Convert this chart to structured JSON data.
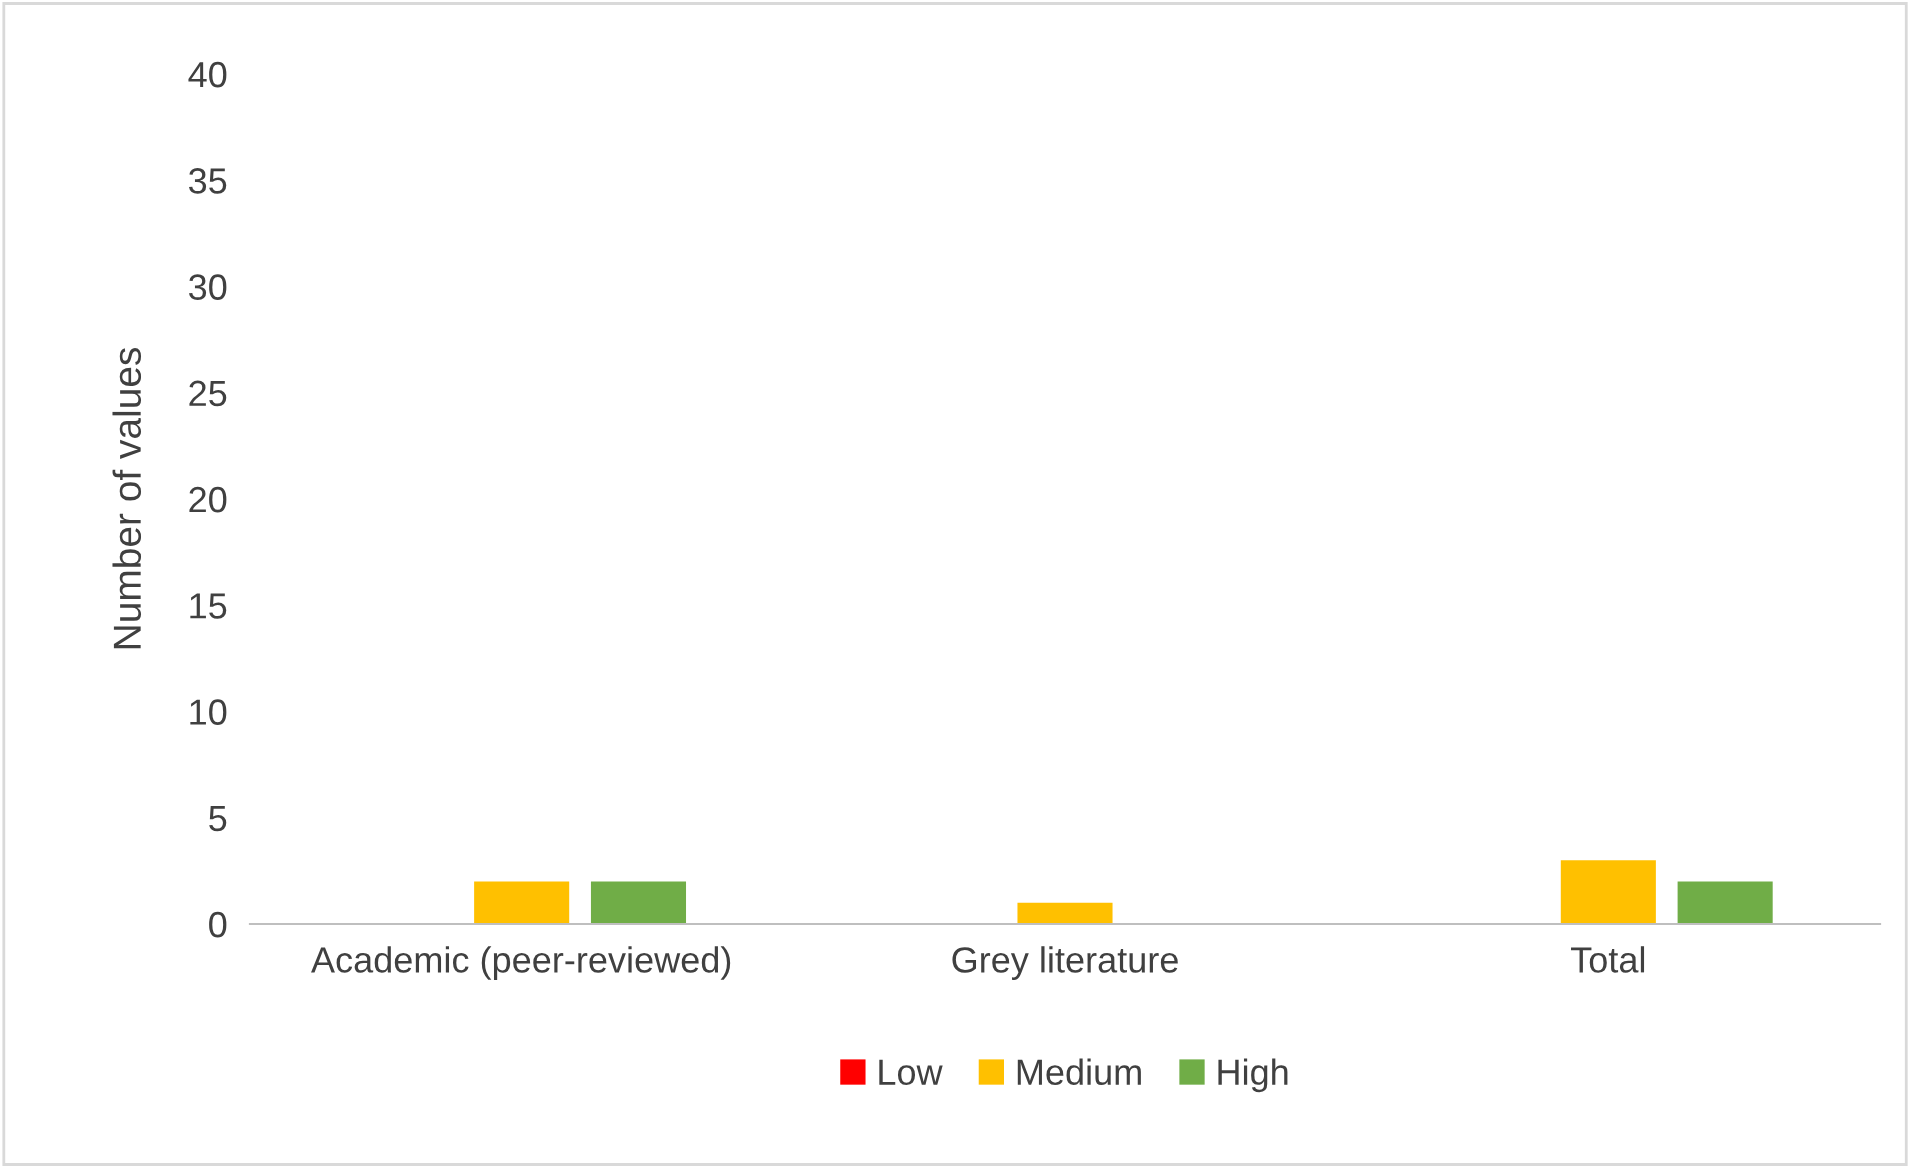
{
  "chart_data": {
    "type": "bar",
    "ylabel": "Number of values",
    "categories": [
      "Academic (peer-reviewed)",
      "Grey literature",
      "Total"
    ],
    "series": [
      {
        "name": "Low",
        "color": "#ff0000",
        "values": [
          0,
          0,
          0
        ]
      },
      {
        "name": "Medium",
        "color": "#ffc000",
        "values": [
          2,
          1,
          3
        ]
      },
      {
        "name": "High",
        "color": "#70ad47",
        "values": [
          2,
          0,
          2
        ]
      }
    ],
    "ylim": [
      0,
      40
    ],
    "yticks": [
      0,
      5,
      10,
      15,
      20,
      25,
      30,
      35,
      40
    ],
    "grid": false,
    "legend": "bottom"
  }
}
